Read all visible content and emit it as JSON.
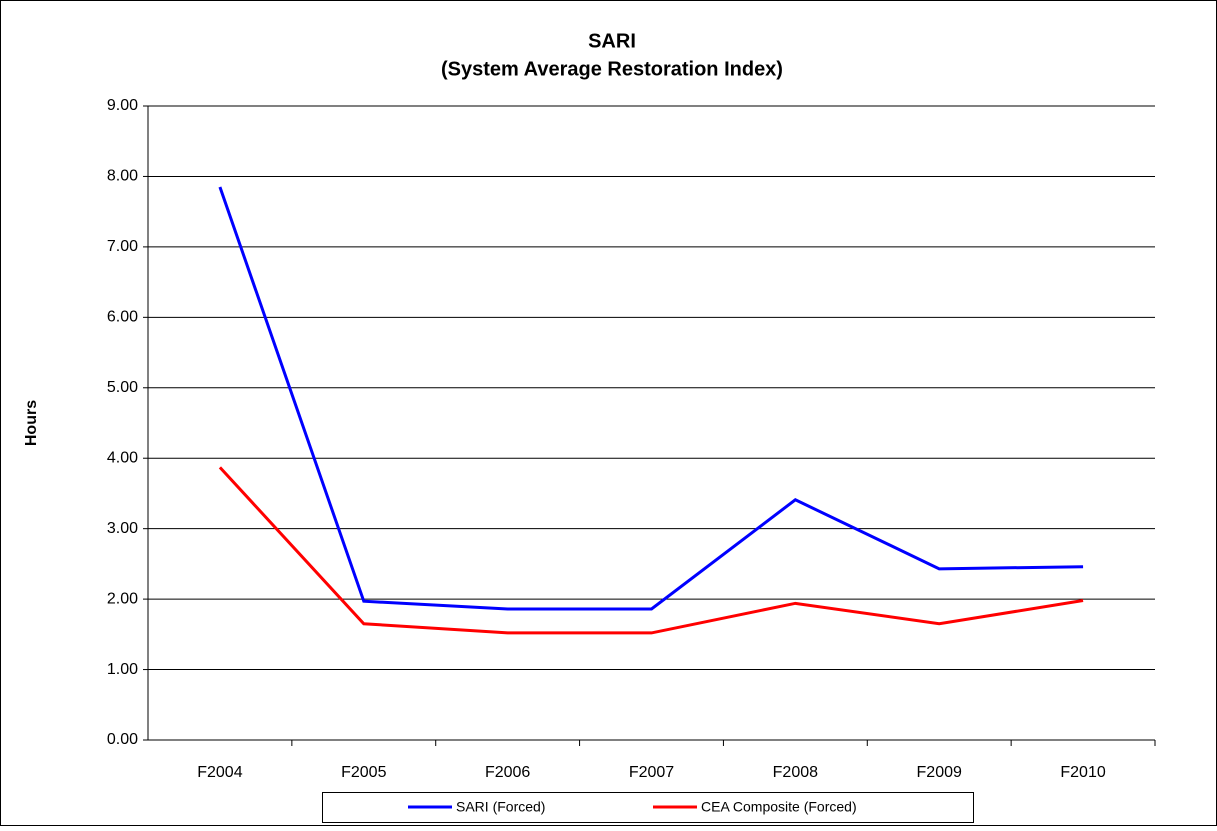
{
  "chart_data": {
    "type": "line",
    "title": "SARI",
    "subtitle": "(System Average Restoration Index)",
    "y_label": "Hours",
    "categories": [
      "F2004",
      "F2005",
      "F2006",
      "F2007",
      "F2008",
      "F2009",
      "F2010"
    ],
    "series": [
      {
        "name": "SARI (Forced)",
        "color": "#0000ff",
        "values": [
          7.85,
          1.97,
          1.86,
          1.86,
          3.41,
          2.43,
          2.46
        ]
      },
      {
        "name": "CEA Composite (Forced)",
        "color": "#ff0000",
        "values": [
          3.87,
          1.65,
          1.52,
          1.52,
          1.94,
          1.65,
          1.98
        ]
      }
    ],
    "ylim": [
      0,
      9
    ],
    "yticks": [
      {
        "value": 0,
        "label": "0.00"
      },
      {
        "value": 1,
        "label": "1.00"
      },
      {
        "value": 2,
        "label": "2.00"
      },
      {
        "value": 3,
        "label": "3.00"
      },
      {
        "value": 4,
        "label": "4.00"
      },
      {
        "value": 5,
        "label": "5.00"
      },
      {
        "value": 6,
        "label": "6.00"
      },
      {
        "value": 7,
        "label": "7.00"
      },
      {
        "value": 8,
        "label": "8.00"
      },
      {
        "value": 9,
        "label": "9.00"
      }
    ],
    "grid": true,
    "legend": "bottom"
  }
}
